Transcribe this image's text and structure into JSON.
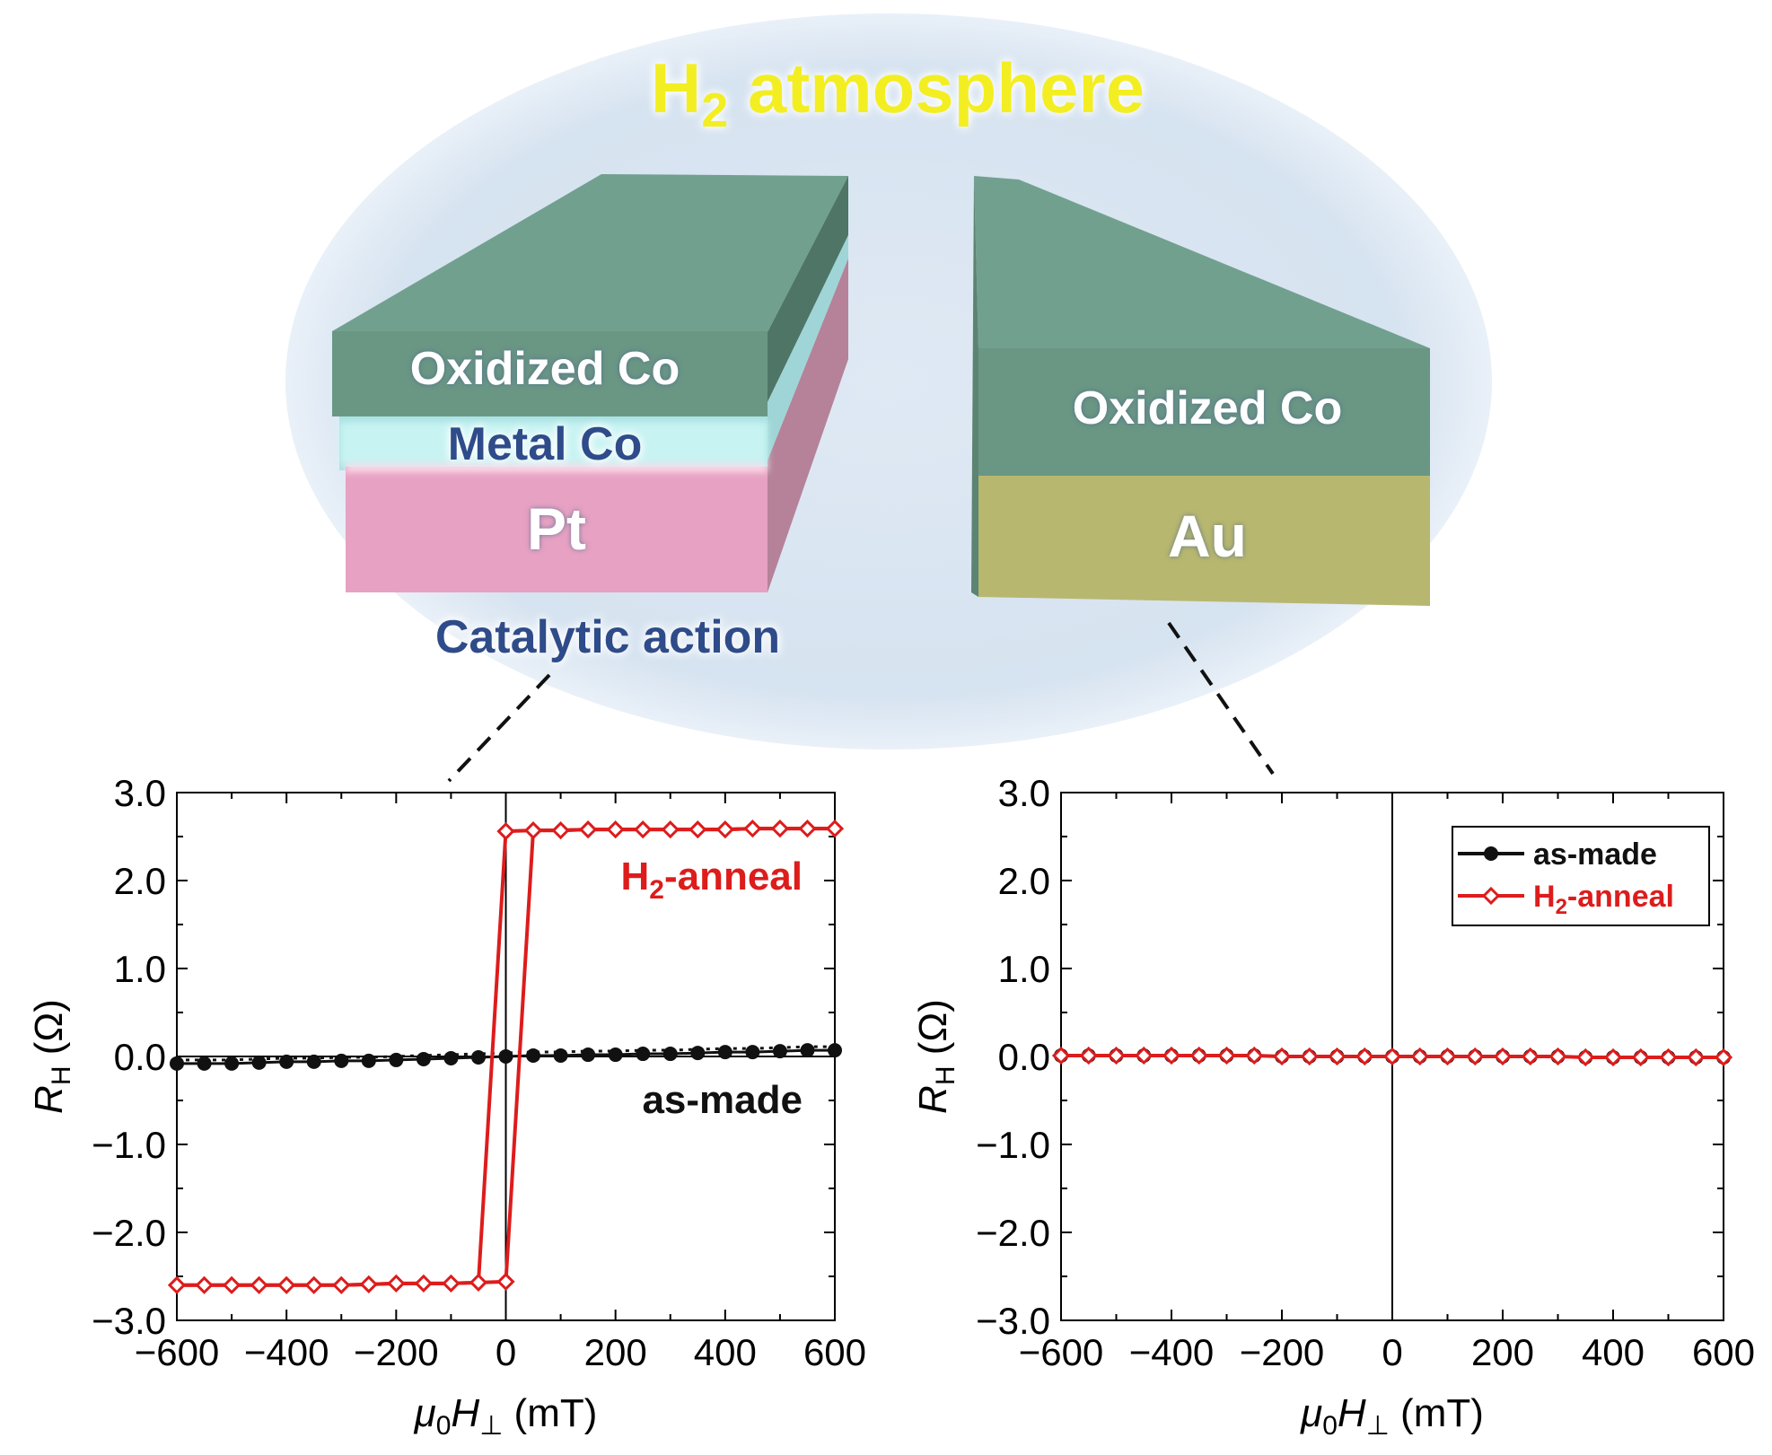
{
  "header": {
    "title_main": "H",
    "title_sub": "2",
    "title_rest": " atmosphere"
  },
  "left_block": {
    "layers": [
      "Oxidized Co",
      "Metal Co",
      "Pt"
    ],
    "caption": "Catalytic action"
  },
  "right_block": {
    "layers": [
      "Oxidized Co",
      "Au"
    ]
  },
  "colors": {
    "oxidized_co": "#6e9e8a",
    "metal_co": "#b9f1ee",
    "pt": "#e69dc1",
    "au": "#b9b76e",
    "bubble": "#dce8f3",
    "title_yellow": "#f5ef28",
    "label_blue": "#2e4c8a",
    "as_made": "#111111",
    "h2_anneal": "#dd1c1c"
  },
  "chart_data": [
    {
      "type": "line",
      "xlabel_main": "μ",
      "xlabel_sub0": "0",
      "xlabel_H": "H",
      "xlabel_subperp": "⊥",
      "xlabel_unit": " (mT)",
      "ylabel_main": "R",
      "ylabel_sub": "H",
      "ylabel_unit": " (Ω)",
      "xlim": [
        -600,
        600
      ],
      "ylim": [
        -3.0,
        3.0
      ],
      "xticks": [
        "−600",
        "−400",
        "−200",
        "0",
        "200",
        "400",
        "600"
      ],
      "yticks": [
        "3.0",
        "2.0",
        "1.0",
        "0.0",
        "−1.0",
        "−2.0",
        "−3.0"
      ],
      "annotations": [
        {
          "main": "H",
          "sub": "2",
          "rest": "-anneal",
          "series": "H2-anneal"
        },
        {
          "main": "as-made",
          "sub": "",
          "rest": "",
          "series": "as-made"
        }
      ],
      "series": [
        {
          "name": "as-made",
          "marker": "circle",
          "x": [
            -600,
            -550,
            -500,
            -450,
            -400,
            -350,
            -300,
            -250,
            -200,
            -150,
            -100,
            -50,
            0,
            50,
            100,
            150,
            200,
            250,
            300,
            350,
            400,
            450,
            500,
            550,
            600
          ],
          "y": [
            -0.08,
            -0.08,
            -0.08,
            -0.07,
            -0.06,
            -0.06,
            -0.05,
            -0.05,
            -0.04,
            -0.03,
            -0.02,
            -0.01,
            0.0,
            0.01,
            0.01,
            0.02,
            0.02,
            0.03,
            0.03,
            0.04,
            0.05,
            0.05,
            0.06,
            0.07,
            0.07
          ]
        },
        {
          "name": "H2-anneal",
          "marker": "diamond",
          "x": [
            -600,
            -550,
            -500,
            -450,
            -400,
            -350,
            -300,
            -250,
            -200,
            -150,
            -100,
            -50,
            0,
            50,
            100,
            150,
            200,
            250,
            300,
            350,
            400,
            450,
            500,
            550,
            600
          ],
          "y_up": [
            -2.6,
            -2.6,
            -2.6,
            -2.6,
            -2.6,
            -2.6,
            -2.6,
            -2.59,
            -2.58,
            -2.58,
            -2.58,
            -2.57,
            -2.56,
            2.57,
            2.57,
            2.58,
            2.58,
            2.58,
            2.58,
            2.58,
            2.58,
            2.59,
            2.59,
            2.59,
            2.59
          ],
          "y_down": [
            -2.6,
            -2.6,
            -2.6,
            -2.6,
            -2.6,
            -2.6,
            -2.6,
            -2.59,
            -2.58,
            -2.58,
            -2.58,
            -2.57,
            2.56,
            2.57,
            2.57,
            2.58,
            2.58,
            2.58,
            2.58,
            2.58,
            2.58,
            2.59,
            2.59,
            2.59,
            2.59
          ]
        }
      ]
    },
    {
      "type": "line",
      "xlabel_main": "μ",
      "xlabel_sub0": "0",
      "xlabel_H": "H",
      "xlabel_subperp": "⊥",
      "xlabel_unit": " (mT)",
      "ylabel_main": "R",
      "ylabel_sub": "H",
      "ylabel_unit": " (Ω)",
      "xlim": [
        -600,
        600
      ],
      "ylim": [
        -3.0,
        3.0
      ],
      "xticks": [
        "−600",
        "−400",
        "−200",
        "0",
        "200",
        "400",
        "600"
      ],
      "yticks": [
        "3.0",
        "2.0",
        "1.0",
        "0.0",
        "−1.0",
        "−2.0",
        "−3.0"
      ],
      "legend": {
        "placement": "top-right",
        "entries": [
          {
            "main": "as-made",
            "sub": "",
            "rest": "",
            "series": "as-made"
          },
          {
            "main": "H",
            "sub": "2",
            "rest": "-anneal",
            "series": "H2-anneal"
          }
        ]
      },
      "series": [
        {
          "name": "as-made",
          "marker": "circle",
          "x": [
            -600,
            -550,
            -500,
            -450,
            -400,
            -350,
            -300,
            -250,
            -200,
            -150,
            -100,
            -50,
            0,
            50,
            100,
            150,
            200,
            250,
            300,
            350,
            400,
            450,
            500,
            550,
            600
          ],
          "y": [
            0.01,
            0.01,
            0.01,
            0.01,
            0.01,
            0.01,
            0.01,
            0.01,
            0.0,
            0.0,
            0.0,
            0.0,
            0.0,
            0.0,
            0.0,
            0.0,
            0.0,
            0.0,
            0.0,
            -0.01,
            -0.01,
            -0.01,
            -0.01,
            -0.01,
            -0.01
          ]
        },
        {
          "name": "H2-anneal",
          "marker": "diamond",
          "x": [
            -600,
            -550,
            -500,
            -450,
            -400,
            -350,
            -300,
            -250,
            -200,
            -150,
            -100,
            -50,
            0,
            50,
            100,
            150,
            200,
            250,
            300,
            350,
            400,
            450,
            500,
            550,
            600
          ],
          "y": [
            0.01,
            0.01,
            0.01,
            0.01,
            0.01,
            0.01,
            0.01,
            0.01,
            0.0,
            0.0,
            0.0,
            0.0,
            0.0,
            0.0,
            0.0,
            0.0,
            0.0,
            0.0,
            0.0,
            -0.01,
            -0.01,
            -0.01,
            -0.01,
            -0.01,
            -0.01
          ]
        }
      ]
    }
  ]
}
